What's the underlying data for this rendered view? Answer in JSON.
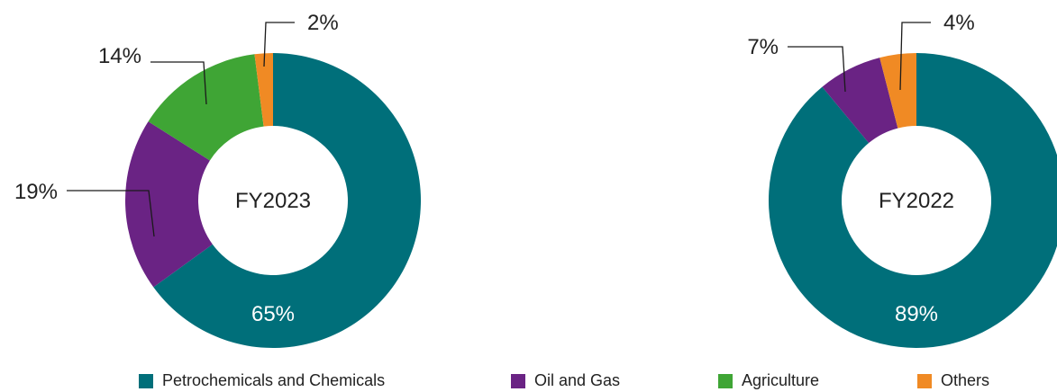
{
  "chart_data": [
    {
      "type": "pie",
      "title": "FY2023",
      "categories": [
        "Petrochemicals and Chemicals",
        "Oil and Gas",
        "Agriculture",
        "Others"
      ],
      "values": [
        65,
        19,
        14,
        2
      ],
      "labels": [
        "65%",
        "19%",
        "14%",
        "2%"
      ]
    },
    {
      "type": "pie",
      "title": "FY2022",
      "categories": [
        "Petrochemicals and Chemicals",
        "Oil and Gas",
        "Agriculture",
        "Others"
      ],
      "values": [
        89,
        7,
        0,
        4
      ],
      "labels": [
        "89%",
        "7%",
        "",
        "4%"
      ]
    }
  ],
  "legend": [
    {
      "label": "Petrochemicals and Chemicals",
      "color": "#006f7a"
    },
    {
      "label": "Oil and Gas",
      "color": "#6a2384"
    },
    {
      "label": "Agriculture",
      "color": "#3fa535"
    },
    {
      "label": "Others",
      "color": "#f08a24"
    }
  ],
  "colors": [
    "#006f7a",
    "#6a2384",
    "#3fa535",
    "#f08a24"
  ]
}
